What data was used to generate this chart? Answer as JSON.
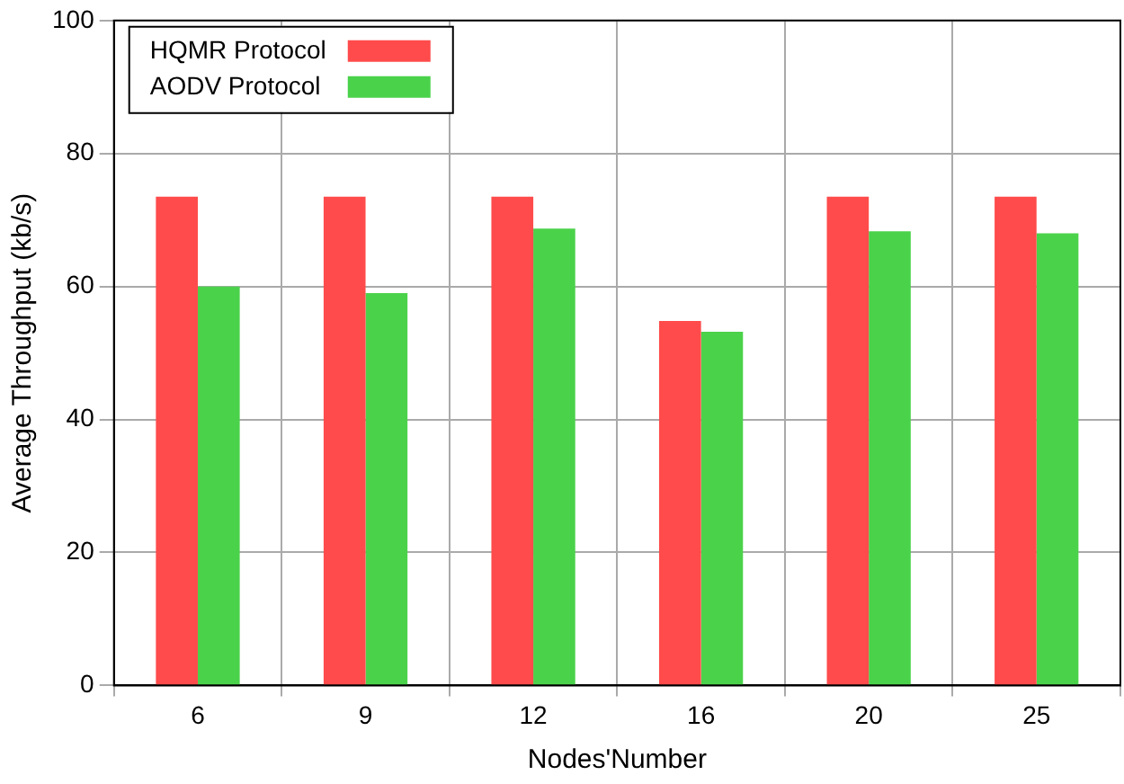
{
  "chart_data": {
    "type": "bar",
    "xlabel": "Nodes'Number",
    "ylabel": "Average Throughput (kb/s)",
    "categories": [
      "6",
      "9",
      "12",
      "16",
      "20",
      "25"
    ],
    "series": [
      {
        "name": "HQMR Protocol",
        "color": "#ff4b4b",
        "values": [
          73.5,
          73.5,
          73.5,
          54.8,
          73.5,
          73.5
        ]
      },
      {
        "name": "AODV Protocol",
        "color": "#4bd24b",
        "values": [
          60,
          59,
          68.7,
          53.2,
          68.3,
          68
        ]
      }
    ],
    "ylim": [
      0,
      100
    ],
    "yticks": [
      0,
      20,
      40,
      60,
      80,
      100
    ],
    "grid": true,
    "legend": "top left"
  }
}
